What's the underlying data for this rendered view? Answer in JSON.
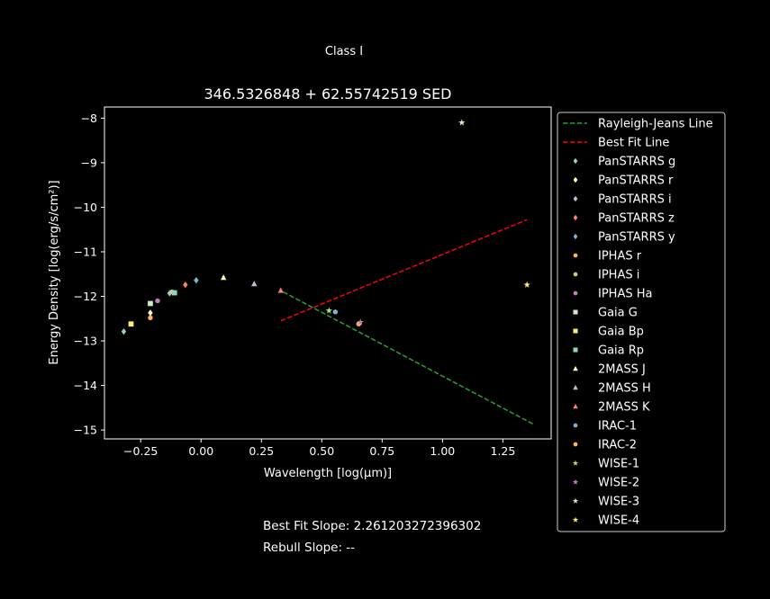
{
  "suptitle": "Class I",
  "footer": {
    "best_fit_slope": "Best Fit Slope: 2.261203272396302",
    "rebull_slope": "Rebull Slope: --"
  },
  "chart_data": {
    "type": "scatter",
    "title": "346.5326848 + 62.55742519 SED",
    "xlabel": "Wavelength [log(μm)]",
    "ylabel": "Energy Density [log(erg/s/cm²)]",
    "xlim": [
      -0.4,
      1.45
    ],
    "ylim": [
      -15.2,
      -7.75
    ],
    "xticks": [
      -0.25,
      0.0,
      0.25,
      0.5,
      0.75,
      1.0,
      1.25
    ],
    "xtick_labels": [
      "−0.25",
      "0.00",
      "0.25",
      "0.50",
      "0.75",
      "1.00",
      "1.25"
    ],
    "yticks": [
      -8,
      -9,
      -10,
      -11,
      -12,
      -13,
      -14,
      -15
    ],
    "ytick_labels": [
      "−8",
      "−9",
      "−10",
      "−11",
      "−12",
      "−13",
      "−14",
      "−15"
    ],
    "grid": false,
    "legend_position": "outside-right",
    "lines": [
      {
        "name": "Rayleigh-Jeans Line",
        "color": "#2ca02c",
        "dash": true,
        "x": [
          0.34,
          1.38
        ],
        "y": [
          -11.9,
          -14.88
        ]
      },
      {
        "name": "Best Fit Line",
        "color": "#ff0000",
        "dash": true,
        "x": [
          0.33,
          1.35
        ],
        "y": [
          -12.55,
          -10.28
        ]
      }
    ],
    "series": [
      {
        "name": "PanSTARRS g",
        "marker": "diamond",
        "color": "#8dd3c7",
        "x": [
          -0.32
        ],
        "y": [
          -12.79
        ]
      },
      {
        "name": "PanSTARRS r",
        "marker": "diamond",
        "color": "#ffffb3",
        "x": [
          -0.21
        ],
        "y": [
          -12.37
        ]
      },
      {
        "name": "PanSTARRS i",
        "marker": "diamond",
        "color": "#bebada",
        "x": [
          -0.13
        ],
        "y": [
          -11.93
        ]
      },
      {
        "name": "PanSTARRS z",
        "marker": "diamond",
        "color": "#fb8072",
        "x": [
          -0.065
        ],
        "y": [
          -11.74
        ]
      },
      {
        "name": "PanSTARRS y",
        "marker": "diamond",
        "color": "#80b1d3",
        "x": [
          -0.02
        ],
        "y": [
          -11.64
        ]
      },
      {
        "name": "IPHAS r",
        "marker": "circle",
        "color": "#fdb462",
        "x": [
          -0.21
        ],
        "y": [
          -12.48
        ]
      },
      {
        "name": "IPHAS i",
        "marker": "circle",
        "color": "#b3de69",
        "x": [
          -0.12
        ],
        "y": [
          -11.9
        ]
      },
      {
        "name": "IPHAS Ha",
        "marker": "circle",
        "color": "#bc80bd",
        "x": [
          -0.18
        ],
        "y": [
          -12.1
        ]
      },
      {
        "name": "Gaia G",
        "marker": "square",
        "color": "#ccebc5",
        "x": [
          -0.21
        ],
        "y": [
          -12.16
        ]
      },
      {
        "name": "Gaia Bp",
        "marker": "square",
        "color": "#ffed6f",
        "x": [
          -0.29
        ],
        "y": [
          -12.62
        ]
      },
      {
        "name": "Gaia Rp",
        "marker": "square",
        "color": "#8dd3c7",
        "x": [
          -0.11
        ],
        "y": [
          -11.92
        ]
      },
      {
        "name": "2MASS J",
        "marker": "triangle",
        "color": "#ffffb3",
        "x": [
          0.093
        ],
        "y": [
          -11.58
        ]
      },
      {
        "name": "2MASS H",
        "marker": "triangle",
        "color": "#bebada",
        "x": [
          0.22
        ],
        "y": [
          -11.72
        ]
      },
      {
        "name": "2MASS K",
        "marker": "triangle",
        "color": "#fb8072",
        "x": [
          0.33
        ],
        "y": [
          -11.87
        ]
      },
      {
        "name": "IRAC-1",
        "marker": "circle",
        "color": "#80b1d3",
        "x": [
          0.556
        ],
        "y": [
          -12.35
        ]
      },
      {
        "name": "IRAC-2",
        "marker": "circle",
        "color": "#fdb462",
        "x": [
          0.653
        ],
        "y": [
          -12.62
        ]
      },
      {
        "name": "WISE-1",
        "marker": "star",
        "color": "#b3de69",
        "x": [
          0.53
        ],
        "y": [
          -12.32
        ]
      },
      {
        "name": "WISE-2",
        "marker": "star",
        "color": "#bc80bd",
        "x": [
          0.66
        ],
        "y": [
          -12.58
        ]
      },
      {
        "name": "WISE-3",
        "marker": "star",
        "color": "#ccebc5",
        "x": [
          1.08
        ],
        "y": [
          -8.1
        ]
      },
      {
        "name": "WISE-4",
        "marker": "star",
        "color": "#ffed6f",
        "x": [
          1.35
        ],
        "y": [
          -11.74
        ]
      }
    ]
  }
}
